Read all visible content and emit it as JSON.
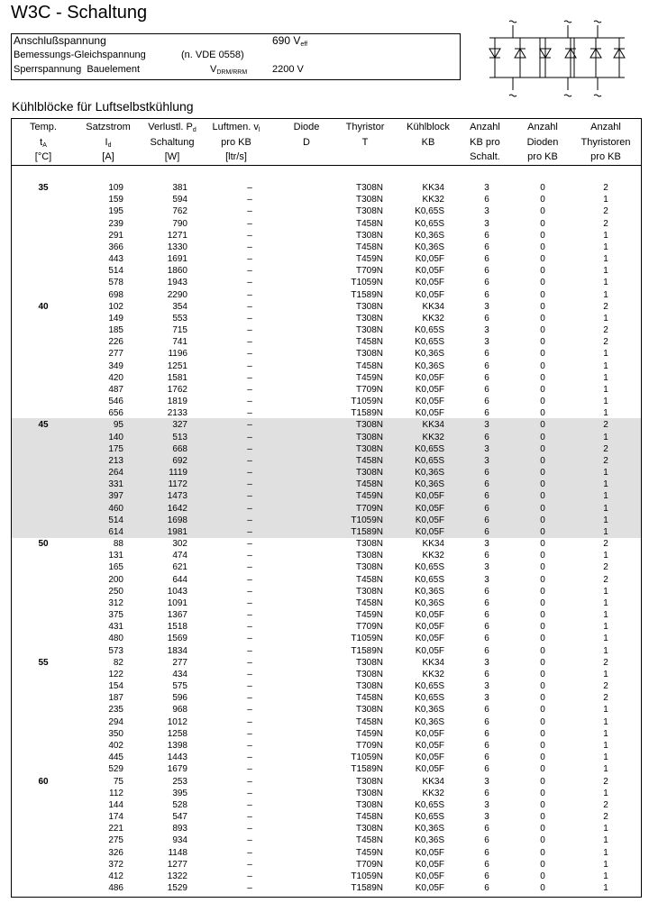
{
  "header": {
    "title": "W3C - Schaltung",
    "section": "Kühlblöcke für Luftselbstkühlung"
  },
  "specs": [
    {
      "label": "Anschlußspannung",
      "value": "690 V",
      "value_sub": "eff"
    },
    {
      "label": "Bemessungs-Gleichspannung",
      "note": "(n. VDE 0558)"
    },
    {
      "label": "Sperrspannung  Bauelement",
      "symbol": "V",
      "symbol_sub": "DRM/RRM",
      "value": "2200 V"
    }
  ],
  "table": {
    "columns": [
      [
        [
          "Temp."
        ],
        [
          {
            "text": "t",
            "sub": "A"
          }
        ],
        [
          "[°C]"
        ]
      ],
      [
        [
          "Satzstrom"
        ],
        [
          {
            "text": "I",
            "sub": "d"
          }
        ],
        [
          "[A]"
        ]
      ],
      [
        [
          "Verlustl. ",
          {
            "text": "P",
            "sub": "d"
          }
        ],
        [
          "Schaltung"
        ],
        [
          "[W]"
        ]
      ],
      [
        [
          "Luftmen. ",
          {
            "text": "v",
            "sub": "l"
          }
        ],
        [
          "pro KB"
        ],
        [
          "[ltr/s]"
        ]
      ],
      [
        [
          "Diode"
        ],
        [
          "D"
        ]
      ],
      [
        [
          "Thyristor"
        ],
        [
          "T"
        ]
      ],
      [
        [
          "Kühlblock"
        ],
        [
          "KB"
        ]
      ],
      [
        [
          "Anzahl"
        ],
        [
          "KB pro"
        ],
        [
          "Schalt."
        ]
      ],
      [
        [
          "Anzahl"
        ],
        [
          "Dioden"
        ],
        [
          "pro KB"
        ]
      ],
      [
        [
          "Anzahl"
        ],
        [
          "Thyristoren"
        ],
        [
          "pro KB"
        ]
      ]
    ],
    "groups": [
      {
        "temp": 35,
        "rows": [
          [
            109,
            381,
            "–",
            "T308N",
            "KK34",
            3,
            0,
            2
          ],
          [
            159,
            594,
            "–",
            "T308N",
            "KK32",
            6,
            0,
            1
          ],
          [
            195,
            762,
            "–",
            "T308N",
            "K0,65S",
            3,
            0,
            2
          ],
          [
            239,
            790,
            "–",
            "T458N",
            "K0,65S",
            3,
            0,
            2
          ],
          [
            291,
            1271,
            "–",
            "T308N",
            "K0,36S",
            6,
            0,
            1
          ],
          [
            366,
            1330,
            "–",
            "T458N",
            "K0,36S",
            6,
            0,
            1
          ],
          [
            443,
            1691,
            "–",
            "T459N",
            "K0,05F",
            6,
            0,
            1
          ],
          [
            514,
            1860,
            "–",
            "T709N",
            "K0,05F",
            6,
            0,
            1
          ],
          [
            578,
            1943,
            "–",
            "T1059N",
            "K0,05F",
            6,
            0,
            1
          ],
          [
            698,
            2290,
            "–",
            "T1589N",
            "K0,05F",
            6,
            0,
            1
          ]
        ]
      },
      {
        "temp": 40,
        "rows": [
          [
            102,
            354,
            "–",
            "T308N",
            "KK34",
            3,
            0,
            2
          ],
          [
            149,
            553,
            "–",
            "T308N",
            "KK32",
            6,
            0,
            1
          ],
          [
            185,
            715,
            "–",
            "T308N",
            "K0,65S",
            3,
            0,
            2
          ],
          [
            226,
            741,
            "–",
            "T458N",
            "K0,65S",
            3,
            0,
            2
          ],
          [
            277,
            1196,
            "–",
            "T308N",
            "K0,36S",
            6,
            0,
            1
          ],
          [
            349,
            1251,
            "–",
            "T458N",
            "K0,36S",
            6,
            0,
            1
          ],
          [
            420,
            1581,
            "–",
            "T459N",
            "K0,05F",
            6,
            0,
            1
          ],
          [
            487,
            1762,
            "–",
            "T709N",
            "K0,05F",
            6,
            0,
            1
          ],
          [
            546,
            1819,
            "–",
            "T1059N",
            "K0,05F",
            6,
            0,
            1
          ],
          [
            656,
            2133,
            "–",
            "T1589N",
            "K0,05F",
            6,
            0,
            1
          ]
        ]
      },
      {
        "temp": 45,
        "shaded": true,
        "rows": [
          [
            95,
            327,
            "–",
            "T308N",
            "KK34",
            3,
            0,
            2
          ],
          [
            140,
            513,
            "–",
            "T308N",
            "KK32",
            6,
            0,
            1
          ],
          [
            175,
            668,
            "–",
            "T308N",
            "K0,65S",
            3,
            0,
            2
          ],
          [
            213,
            692,
            "–",
            "T458N",
            "K0,65S",
            3,
            0,
            2
          ],
          [
            264,
            1119,
            "–",
            "T308N",
            "K0,36S",
            6,
            0,
            1
          ],
          [
            331,
            1172,
            "–",
            "T458N",
            "K0,36S",
            6,
            0,
            1
          ],
          [
            397,
            1473,
            "–",
            "T459N",
            "K0,05F",
            6,
            0,
            1
          ],
          [
            460,
            1642,
            "–",
            "T709N",
            "K0,05F",
            6,
            0,
            1
          ],
          [
            514,
            1698,
            "–",
            "T1059N",
            "K0,05F",
            6,
            0,
            1
          ],
          [
            614,
            1981,
            "–",
            "T1589N",
            "K0,05F",
            6,
            0,
            1
          ]
        ]
      },
      {
        "temp": 50,
        "rows": [
          [
            88,
            302,
            "–",
            "T308N",
            "KK34",
            3,
            0,
            2
          ],
          [
            131,
            474,
            "–",
            "T308N",
            "KK32",
            6,
            0,
            1
          ],
          [
            165,
            621,
            "–",
            "T308N",
            "K0,65S",
            3,
            0,
            2
          ],
          [
            200,
            644,
            "–",
            "T458N",
            "K0,65S",
            3,
            0,
            2
          ],
          [
            250,
            1043,
            "–",
            "T308N",
            "K0,36S",
            6,
            0,
            1
          ],
          [
            312,
            1091,
            "–",
            "T458N",
            "K0,36S",
            6,
            0,
            1
          ],
          [
            375,
            1367,
            "–",
            "T459N",
            "K0,05F",
            6,
            0,
            1
          ],
          [
            431,
            1518,
            "–",
            "T709N",
            "K0,05F",
            6,
            0,
            1
          ],
          [
            480,
            1569,
            "–",
            "T1059N",
            "K0,05F",
            6,
            0,
            1
          ],
          [
            573,
            1834,
            "–",
            "T1589N",
            "K0,05F",
            6,
            0,
            1
          ]
        ]
      },
      {
        "temp": 55,
        "rows": [
          [
            82,
            277,
            "–",
            "T308N",
            "KK34",
            3,
            0,
            2
          ],
          [
            122,
            434,
            "–",
            "T308N",
            "KK32",
            6,
            0,
            1
          ],
          [
            154,
            575,
            "–",
            "T308N",
            "K0,65S",
            3,
            0,
            2
          ],
          [
            187,
            596,
            "–",
            "T458N",
            "K0,65S",
            3,
            0,
            2
          ],
          [
            235,
            968,
            "–",
            "T308N",
            "K0,36S",
            6,
            0,
            1
          ],
          [
            294,
            1012,
            "–",
            "T458N",
            "K0,36S",
            6,
            0,
            1
          ],
          [
            350,
            1258,
            "–",
            "T459N",
            "K0,05F",
            6,
            0,
            1
          ],
          [
            402,
            1398,
            "–",
            "T709N",
            "K0,05F",
            6,
            0,
            1
          ],
          [
            445,
            1443,
            "–",
            "T1059N",
            "K0,05F",
            6,
            0,
            1
          ],
          [
            529,
            1679,
            "–",
            "T1589N",
            "K0,05F",
            6,
            0,
            1
          ]
        ]
      },
      {
        "temp": 60,
        "rows": [
          [
            75,
            253,
            "–",
            "T308N",
            "KK34",
            3,
            0,
            2
          ],
          [
            112,
            395,
            "–",
            "T308N",
            "KK32",
            6,
            0,
            1
          ],
          [
            144,
            528,
            "–",
            "T308N",
            "K0,65S",
            3,
            0,
            2
          ],
          [
            174,
            547,
            "–",
            "T458N",
            "K0,65S",
            3,
            0,
            2
          ],
          [
            221,
            893,
            "–",
            "T308N",
            "K0,36S",
            6,
            0,
            1
          ],
          [
            275,
            934,
            "–",
            "T458N",
            "K0,36S",
            6,
            0,
            1
          ],
          [
            326,
            1148,
            "–",
            "T459N",
            "K0,05F",
            6,
            0,
            1
          ],
          [
            372,
            1277,
            "–",
            "T709N",
            "K0,05F",
            6,
            0,
            1
          ],
          [
            412,
            1322,
            "–",
            "T1059N",
            "K0,05F",
            6,
            0,
            1
          ],
          [
            486,
            1529,
            "–",
            "T1589N",
            "K0,05F",
            6,
            0,
            1
          ]
        ]
      }
    ]
  }
}
